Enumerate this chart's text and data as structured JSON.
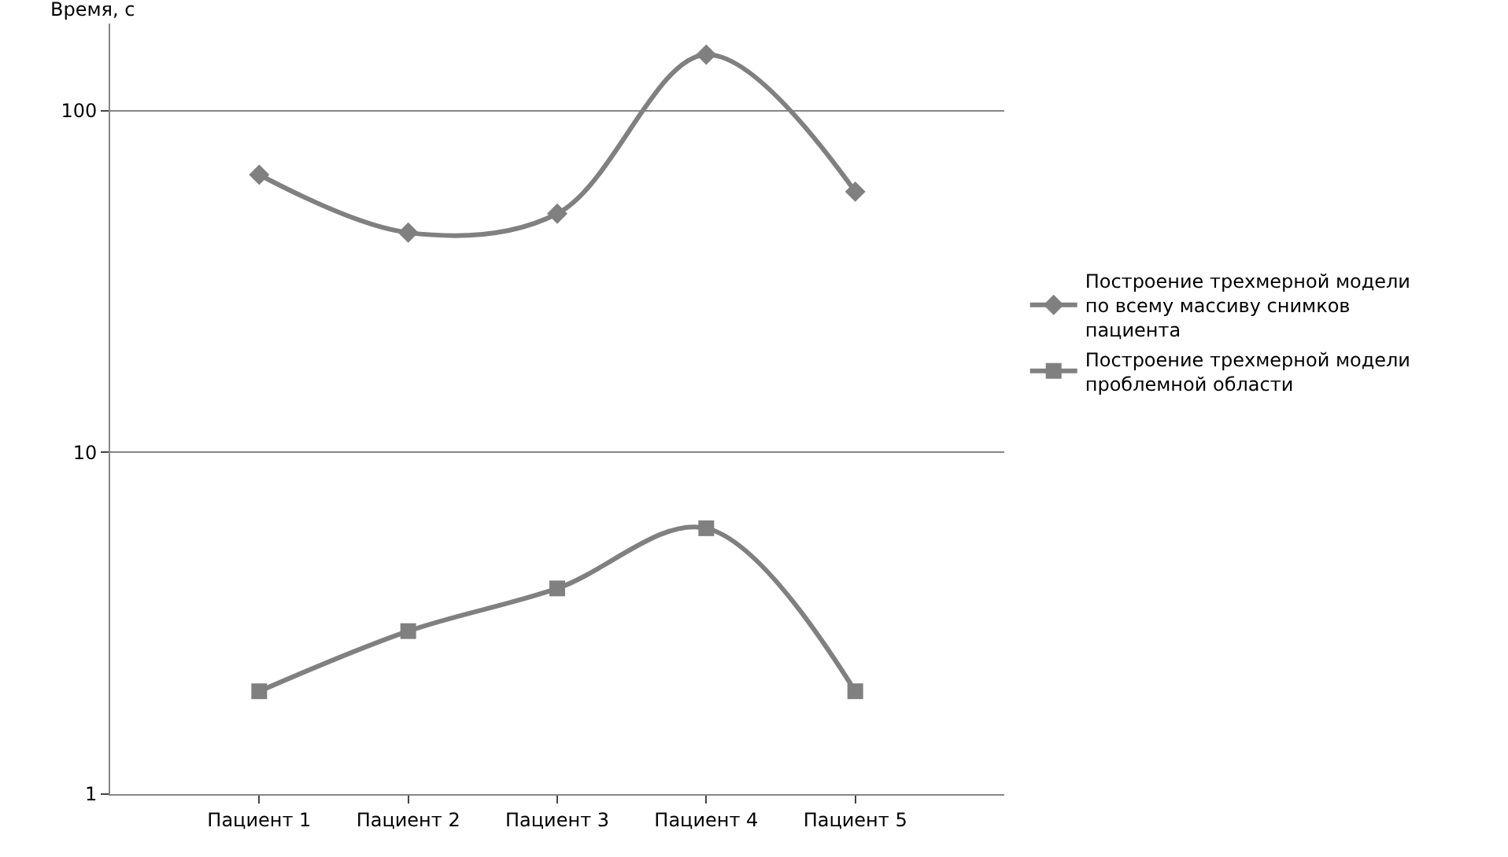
{
  "chart_data": {
    "type": "line",
    "ylabel": "Время, с",
    "categories": [
      "Пациент 1",
      "Пациент 2",
      "Пациент 3",
      "Пациент 4",
      "Пациент 5"
    ],
    "series": [
      {
        "name": "Построение трехмерной модели по всему массиву снимков пациента",
        "color": "#808080",
        "marker": "diamond",
        "values": [
          65,
          44,
          50,
          146,
          58
        ]
      },
      {
        "name": "Построение трехмерной модели проблемной области",
        "color": "#808080",
        "marker": "square",
        "values": [
          2,
          3,
          4,
          6,
          2
        ]
      }
    ],
    "log": true,
    "ylim": [
      1,
      180
    ],
    "yticks": [
      1,
      10,
      100
    ],
    "grid": "y",
    "legend": "right",
    "line_style": "solid"
  }
}
